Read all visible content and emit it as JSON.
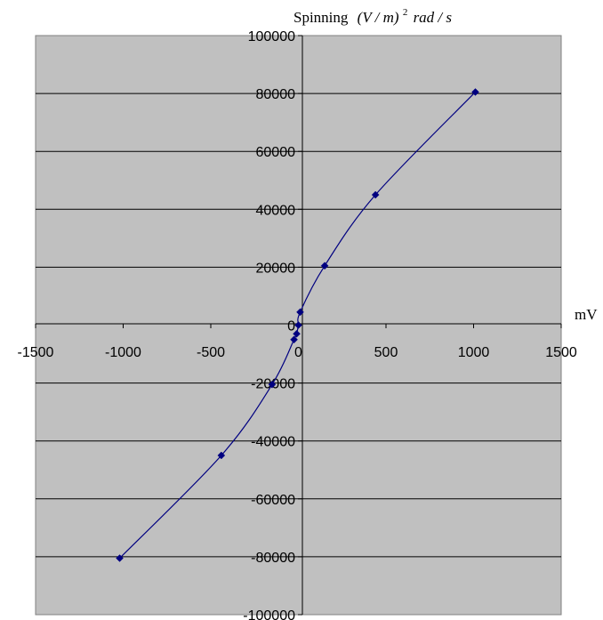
{
  "chart_data": {
    "type": "scatter",
    "title": "",
    "ylabel_parts": {
      "prefix": "Spinning",
      "paren": "(V / m)",
      "exp": "2",
      "suffix": "rad / s"
    },
    "xlabel": "mV",
    "xlim": [
      -1500,
      1500
    ],
    "ylim": [
      -100000,
      100000
    ],
    "x_ticks": [
      -1500,
      -1000,
      -500,
      0,
      500,
      1000,
      1500
    ],
    "y_ticks": [
      -100000,
      -80000,
      -60000,
      -40000,
      -20000,
      0,
      20000,
      40000,
      60000,
      80000,
      100000
    ],
    "x_tick_labels": [
      "-1500",
      "-1000",
      "-500",
      "0",
      "500",
      "1000",
      "1500"
    ],
    "y_tick_labels": [
      "-100000",
      "-80000",
      "-60000",
      "-40000",
      "-20000",
      "0",
      "20000",
      "40000",
      "60000",
      "80000",
      "100000"
    ],
    "grid": "horizontal major gridlines",
    "legend": "none",
    "series": [
      {
        "marker": "diamond",
        "line": "smoothed",
        "points": [
          {
            "x": -1020,
            "y": -80500
          },
          {
            "x": -440,
            "y": -45000
          },
          {
            "x": -150,
            "y": -20500
          },
          {
            "x": -25,
            "y": -5000
          },
          {
            "x": -10,
            "y": -3000
          },
          {
            "x": 0,
            "y": 0
          },
          {
            "x": 10,
            "y": 4500
          },
          {
            "x": 150,
            "y": 20500
          },
          {
            "x": 440,
            "y": 45000
          },
          {
            "x": 1010,
            "y": 80500
          }
        ]
      }
    ],
    "colors": {
      "plot_background": "#c0c0c0",
      "gridline": "#000000",
      "series": "#000080",
      "axis": "#000000"
    }
  }
}
